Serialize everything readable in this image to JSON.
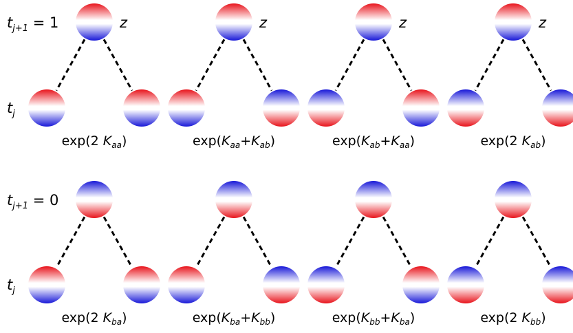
{
  "rows": [
    {
      "label_main": "t",
      "label_sub": "j+1",
      "label_value": " = 1",
      "bottom_label_main": "t",
      "bottom_label_sub": "j",
      "parent_orientation": "red-top",
      "parent_tag": "z",
      "panels": [
        {
          "children": [
            "red-top",
            "red-top"
          ],
          "formula": [
            {
              "t": "exp(2 "
            },
            {
              "t": "K",
              "i": true
            },
            {
              "t": "aa",
              "sub": true
            },
            {
              "t": ")"
            }
          ]
        },
        {
          "children": [
            "red-top",
            "blue-top"
          ],
          "formula": [
            {
              "t": "exp("
            },
            {
              "t": "K",
              "i": true
            },
            {
              "t": "aa",
              "sub": true
            },
            {
              "t": "+"
            },
            {
              "t": "K",
              "i": true
            },
            {
              "t": "ab",
              "sub": true
            },
            {
              "t": ")"
            }
          ]
        },
        {
          "children": [
            "blue-top",
            "red-top"
          ],
          "formula": [
            {
              "t": "exp("
            },
            {
              "t": "K",
              "i": true
            },
            {
              "t": "ab",
              "sub": true
            },
            {
              "t": "+"
            },
            {
              "t": "K",
              "i": true
            },
            {
              "t": "aa",
              "sub": true
            },
            {
              "t": ")"
            }
          ]
        },
        {
          "children": [
            "blue-top",
            "blue-top"
          ],
          "formula": [
            {
              "t": "exp(2 "
            },
            {
              "t": "K",
              "i": true
            },
            {
              "t": "ab",
              "sub": true
            },
            {
              "t": ")"
            }
          ]
        }
      ]
    },
    {
      "label_main": "t",
      "label_sub": "j+1",
      "label_value": " = 0",
      "bottom_label_main": "t",
      "bottom_label_sub": "j",
      "parent_orientation": "blue-top",
      "parent_tag": "",
      "panels": [
        {
          "children": [
            "red-top",
            "red-top"
          ],
          "formula": [
            {
              "t": "exp(2 "
            },
            {
              "t": "K",
              "i": true
            },
            {
              "t": "ba",
              "sub": true
            },
            {
              "t": ")"
            }
          ]
        },
        {
          "children": [
            "red-top",
            "blue-top"
          ],
          "formula": [
            {
              "t": "exp("
            },
            {
              "t": "K",
              "i": true
            },
            {
              "t": "ba",
              "sub": true
            },
            {
              "t": "+"
            },
            {
              "t": "K",
              "i": true
            },
            {
              "t": "bb",
              "sub": true
            },
            {
              "t": ")"
            }
          ]
        },
        {
          "children": [
            "blue-top",
            "red-top"
          ],
          "formula": [
            {
              "t": "exp("
            },
            {
              "t": "K",
              "i": true
            },
            {
              "t": "bb",
              "sub": true
            },
            {
              "t": "+"
            },
            {
              "t": "K",
              "i": true
            },
            {
              "t": "ba",
              "sub": true
            },
            {
              "t": ")"
            }
          ]
        },
        {
          "children": [
            "blue-top",
            "blue-top"
          ],
          "formula": [
            {
              "t": "exp(2 "
            },
            {
              "t": "K",
              "i": true
            },
            {
              "t": "bb",
              "sub": true
            },
            {
              "t": ")"
            }
          ]
        }
      ]
    }
  ],
  "colors": {
    "red": "#e8141c",
    "blue": "#1818d8",
    "white": "#ffffff",
    "edge": "#000000"
  }
}
